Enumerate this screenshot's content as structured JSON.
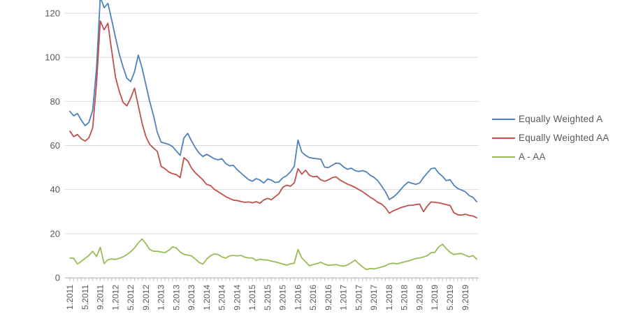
{
  "colors": {
    "background": "#ffffff",
    "gridline": "#d9d9d9",
    "axis_line": "#bfbfbf",
    "tick": "#bfbfbf",
    "axis_text": "#595959",
    "legend_text": "#595959",
    "series_a": "#4f81bd",
    "series_aa": "#c0504d",
    "series_diff": "#9bbb59"
  },
  "chart_data": {
    "type": "line",
    "title": "",
    "grid": true,
    "legend_position": "right",
    "x_axis": {
      "label": "",
      "tick_interval_months": 4,
      "tick_labels": [
        "1.2011",
        "5.2011",
        "9.2011",
        "1.2012",
        "5.2012",
        "9.2012",
        "1.2013",
        "5.2013",
        "9.2013",
        "1.2014",
        "5.2014",
        "9.2014",
        "1.2015",
        "5.2015",
        "9.2015",
        "1.2016",
        "5.2016",
        "9.2016",
        "1.2017",
        "5.2017",
        "9.2017",
        "1.2018",
        "5.2018",
        "9.2018",
        "1.2019",
        "5.2019",
        "9.2019"
      ]
    },
    "y_axis": {
      "label": "",
      "min": 0,
      "max": 120,
      "step": 20,
      "tick_labels": [
        "0",
        "20",
        "40",
        "60",
        "80",
        "100",
        "120"
      ]
    },
    "series": [
      {
        "name": "Equally Weighted A",
        "color": "#4f81bd",
        "values": [
          75.5,
          73.5,
          74.5,
          71.5,
          69,
          70.5,
          76,
          95,
          127.5,
          122.5,
          124.5,
          117,
          109,
          101.5,
          95.5,
          90.5,
          89,
          93.5,
          101,
          95,
          87.5,
          80,
          73.5,
          66,
          61.5,
          61,
          60.5,
          59.5,
          57.5,
          55.5,
          63.5,
          65.5,
          62,
          59,
          56.5,
          55,
          56,
          55,
          54,
          53.5,
          54,
          51.8,
          50.8,
          51,
          49,
          47.5,
          46,
          44.5,
          43.8,
          45,
          44.3,
          43,
          44.8,
          44.3,
          43.2,
          43.5,
          45.3,
          46.3,
          48,
          50.5,
          62.5,
          57,
          55.5,
          54.5,
          54.2,
          54,
          53.8,
          50.2,
          50,
          51,
          52,
          51.8,
          50.3,
          49.2,
          49.7,
          48.6,
          48.2,
          48.6,
          48,
          46.5,
          45.5,
          44,
          41.5,
          39,
          35.5,
          36.5,
          38,
          40,
          42,
          43.4,
          42.8,
          42.4,
          43,
          45.5,
          47.5,
          49.5,
          49.8,
          47.5,
          46,
          44,
          44.5,
          42,
          40.5,
          39.8,
          39,
          37.3,
          36.5,
          34.5
        ]
      },
      {
        "name": "Equally Weighted AA",
        "color": "#c0504d",
        "values": [
          66.5,
          64,
          65,
          63,
          62,
          63.5,
          68,
          88,
          116.5,
          112.5,
          115.5,
          103,
          91,
          84.5,
          79.5,
          78,
          81.5,
          86,
          78,
          70,
          64,
          60.5,
          58.8,
          57.3,
          50.5,
          49.5,
          48,
          47.2,
          46.8,
          45.4,
          54.5,
          53,
          49.7,
          47.6,
          46,
          44.4,
          42.3,
          41.8,
          40.1,
          39,
          37.9,
          36.8,
          36,
          35.2,
          35,
          34.6,
          34.2,
          34.4,
          34,
          34.5,
          33.8,
          35.3,
          36,
          35.4,
          36.8,
          38.2,
          41,
          42,
          41.5,
          43,
          49.5,
          47,
          48.8,
          46.5,
          45.8,
          46,
          44.4,
          43.8,
          44.4,
          45.4,
          45.8,
          44.4,
          43.4,
          42.5,
          41.8,
          41,
          40,
          39,
          37.8,
          36.5,
          35.5,
          34.2,
          33.4,
          31.8,
          29.3,
          30.3,
          31,
          31.8,
          32.3,
          32.8,
          32.9,
          33.2,
          33.4,
          30,
          32.5,
          34.4,
          34.2,
          34,
          33.6,
          33.2,
          32.8,
          29.5,
          28.6,
          28.4,
          28.8,
          28.3,
          28,
          27.2
        ]
      },
      {
        "name": "A - AA",
        "color": "#9bbb59",
        "values": [
          8.9,
          8.8,
          6.2,
          7.4,
          8.8,
          10.1,
          12,
          9.6,
          13.8,
          6.4,
          8.2,
          8.5,
          8.3,
          8.8,
          9.5,
          10.5,
          11.8,
          13.5,
          15.8,
          17.6,
          15.4,
          12.8,
          12,
          12,
          11.7,
          11.4,
          12.4,
          14,
          13.5,
          11.7,
          10.6,
          10.3,
          9.9,
          8.5,
          6.9,
          6.2,
          8.5,
          10,
          10.8,
          10.5,
          9.4,
          8.9,
          9.9,
          10.1,
          9.9,
          10.1,
          9.3,
          9,
          9,
          7.8,
          8.4,
          8.1,
          8,
          7.5,
          7.2,
          6.7,
          6.2,
          5.7,
          6.3,
          6.6,
          12.8,
          9,
          7.2,
          5.4,
          6,
          6.4,
          7,
          6.2,
          5.6,
          5.8,
          6,
          5.5,
          5.3,
          5.8,
          6.8,
          8,
          6.3,
          4.9,
          3.7,
          4.2,
          4,
          4.4,
          4.9,
          5.4,
          6.3,
          6.6,
          6.3,
          6.7,
          7.2,
          7.6,
          8.2,
          8.7,
          9,
          9.4,
          10,
          11.4,
          11.5,
          14,
          15.2,
          13.2,
          11.5,
          10.5,
          10.9,
          11,
          10.2,
          9.5,
          10,
          8.5
        ]
      }
    ]
  },
  "legend": {
    "items": [
      {
        "label": "Equally Weighted A"
      },
      {
        "label": "Equally Weighted AA"
      },
      {
        "label": "A - AA"
      }
    ]
  }
}
